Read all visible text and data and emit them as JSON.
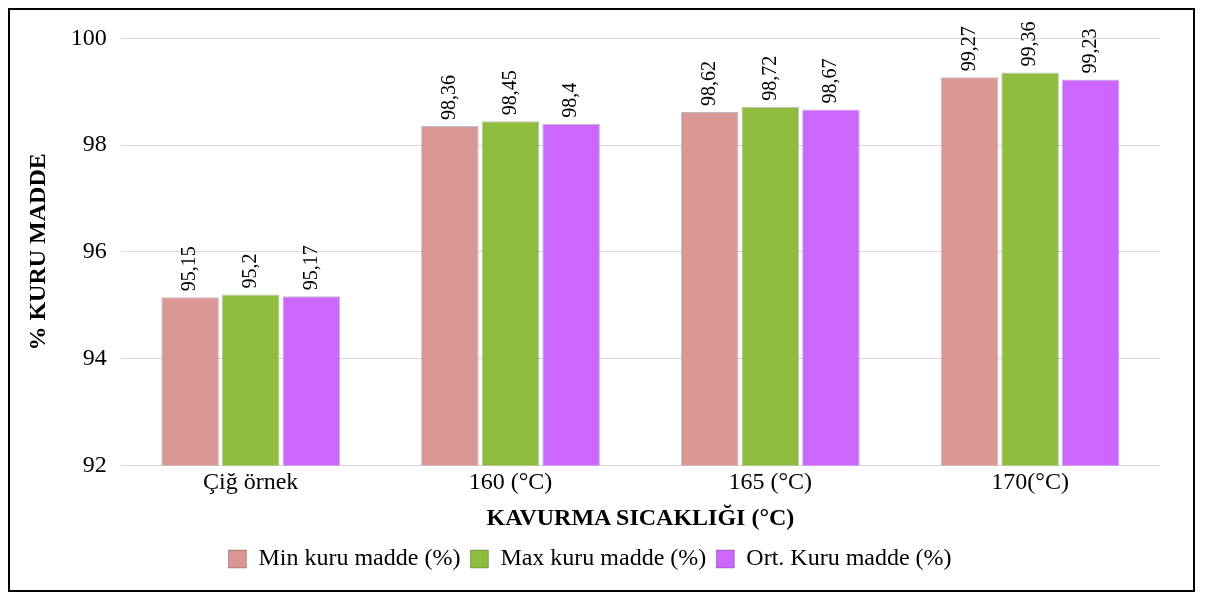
{
  "chart_data": {
    "type": "bar",
    "xlabel": "KAVURMA SICAKLIĞI (°C)",
    "ylabel": "% KURU MADDE",
    "categories": [
      "Çiğ örnek",
      "160 (°C)",
      "165 (°C)",
      "170(°C)"
    ],
    "series": [
      {
        "name": "Min kuru madde (%)",
        "color": "#d99694",
        "values": [
          95.15,
          98.36,
          98.62,
          99.27
        ],
        "value_labels": [
          "95,15",
          "98,36",
          "98,62",
          "99,27"
        ]
      },
      {
        "name": "Max kuru madde (%)",
        "color": "#8fbc3f",
        "values": [
          95.2,
          98.45,
          98.72,
          99.36
        ],
        "value_labels": [
          "95,2",
          "98,45",
          "98,72",
          "99,36"
        ]
      },
      {
        "name": "Ort. Kuru madde (%)",
        "color": "#cc66ff",
        "values": [
          95.17,
          98.4,
          98.67,
          99.23
        ],
        "value_labels": [
          "95,17",
          "98,4",
          "98,67",
          "99,23"
        ]
      }
    ],
    "ylim": [
      92,
      100
    ],
    "yticks": [
      92,
      94,
      96,
      98,
      100
    ],
    "grid": "y",
    "legend": "bottom"
  }
}
